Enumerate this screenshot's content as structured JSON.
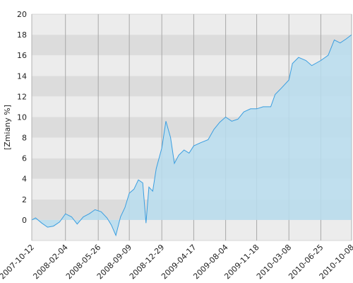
{
  "chart_data": {
    "type": "area",
    "ylabel": "[Zmiany %]",
    "x": [
      "2007-10-12",
      "2007-10-25",
      "2007-11-15",
      "2007-12-05",
      "2007-12-25",
      "2008-01-15",
      "2008-02-04",
      "2008-02-25",
      "2008-03-15",
      "2008-04-05",
      "2008-04-25",
      "2008-05-15",
      "2008-06-05",
      "2008-06-25",
      "2008-07-10",
      "2008-07-25",
      "2008-08-10",
      "2008-08-25",
      "2008-09-09",
      "2008-09-25",
      "2008-10-10",
      "2008-10-25",
      "2008-11-05",
      "2008-11-15",
      "2008-11-28",
      "2008-12-10",
      "2008-12-29",
      "2009-01-12",
      "2009-01-28",
      "2009-02-10",
      "2009-02-25",
      "2009-03-15",
      "2009-04-01",
      "2009-04-17",
      "2009-05-10",
      "2009-06-05",
      "2009-06-25",
      "2009-07-15",
      "2009-08-04",
      "2009-08-25",
      "2009-09-15",
      "2009-10-05",
      "2009-10-28",
      "2009-11-18",
      "2009-12-10",
      "2010-01-05",
      "2010-01-20",
      "2010-02-10",
      "2010-03-08",
      "2010-03-20",
      "2010-04-10",
      "2010-05-05",
      "2010-05-25",
      "2010-06-25",
      "2010-07-20",
      "2010-08-10",
      "2010-08-30",
      "2010-09-20",
      "2010-10-08"
    ],
    "values": [
      0.0,
      0.2,
      -0.3,
      -0.7,
      -0.6,
      -0.2,
      0.6,
      0.3,
      -0.4,
      0.3,
      0.6,
      1.0,
      0.8,
      0.2,
      -0.5,
      -1.5,
      0.3,
      1.2,
      2.6,
      3.0,
      3.9,
      3.6,
      -0.3,
      3.2,
      2.8,
      5.0,
      7.0,
      9.6,
      8.0,
      5.5,
      6.3,
      6.8,
      6.5,
      7.2,
      7.5,
      7.8,
      8.8,
      9.5,
      10.0,
      9.6,
      9.8,
      10.5,
      10.8,
      10.8,
      11.0,
      11.0,
      12.2,
      12.8,
      13.6,
      15.2,
      15.8,
      15.5,
      15.0,
      15.5,
      16.0,
      17.5,
      17.2,
      17.6,
      18.0
    ],
    "color": "#3a9ee0",
    "fill": "#b9ddef",
    "xlim": [
      "2007-10-12",
      "2010-10-08"
    ],
    "xticks": [
      "2007-10-12",
      "2008-02-04",
      "2008-05-26",
      "2008-09-09",
      "2008-12-29",
      "2009-04-17",
      "2009-08-04",
      "2009-11-18",
      "2010-03-08",
      "2010-06-25",
      "2010-10-08"
    ],
    "ylim": [
      -2,
      20
    ],
    "yticks": [
      0,
      2,
      4,
      6,
      8,
      10,
      12,
      14,
      16,
      18,
      20
    ],
    "grid": true
  }
}
